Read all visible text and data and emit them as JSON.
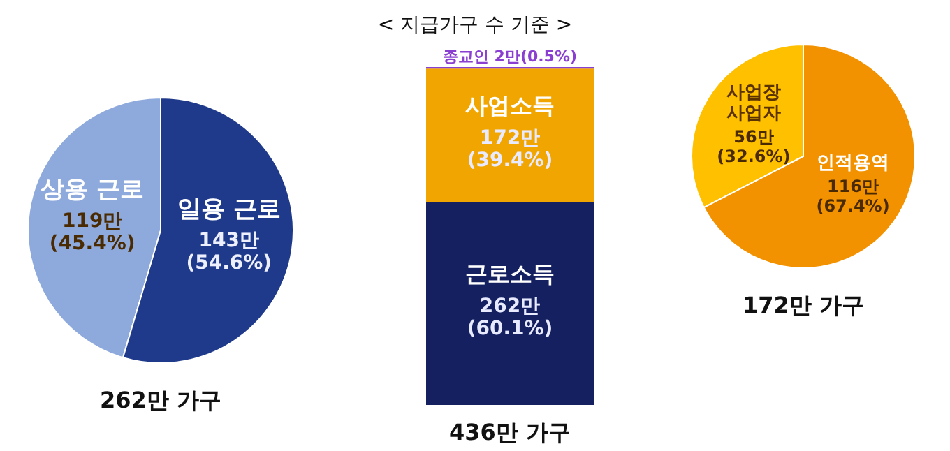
{
  "chart_data": [
    {
      "type": "pie",
      "title": "262만 가구",
      "categories": [
        "상용 근로",
        "일용 근로"
      ],
      "values": [
        119,
        143
      ],
      "colors": [
        "#8ea9db",
        "#1f3a8a"
      ],
      "value_labels": [
        "119만\n(45.4%)",
        "143만\n(54.6%)"
      ]
    },
    {
      "type": "bar",
      "title": "< 지급가구 수 기준 >",
      "annotations": [
        "436만 가구"
      ],
      "categories": [
        null
      ],
      "stacked": true,
      "series": [
        {
          "name": "근로소득",
          "color": "#14205f",
          "values": [
            262
          ],
          "value_labels": [
            "262만\n(60.1%)"
          ]
        },
        {
          "name": "사업소득",
          "color": "#f0a500",
          "values": [
            172
          ],
          "value_labels": [
            "172만\n(39.4%)"
          ]
        },
        {
          "name": "종교인",
          "color": "#8a3fd1",
          "values": [
            2
          ],
          "value_labels": [
            "2만(0.5%)"
          ]
        }
      ]
    },
    {
      "type": "pie",
      "title": "172만 가구",
      "categories": [
        "사업장\n사업자",
        "인적용역"
      ],
      "values": [
        56,
        116
      ],
      "colors": [
        "#ffc000",
        "#f39200"
      ],
      "value_labels": [
        "56만\n(32.6%)",
        "116만\n(67.4%)"
      ]
    }
  ]
}
